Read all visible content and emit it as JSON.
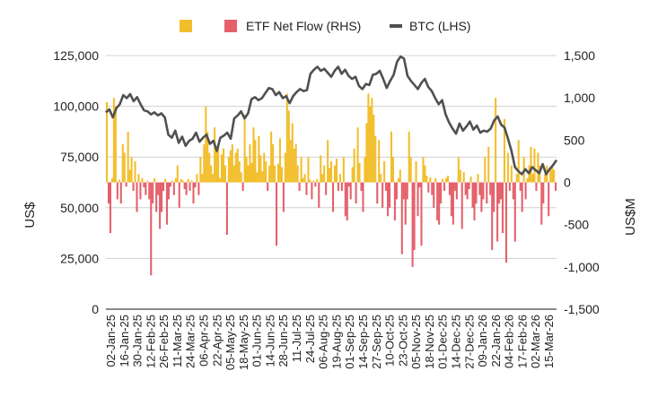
{
  "chart_data": {
    "type": "bar+line",
    "title": "",
    "legend": {
      "placement": "top-center",
      "entries": [
        {
          "label": "",
          "color": "#F2BE2C",
          "kind": "square"
        },
        {
          "label": "ETF Net Flow (RHS)",
          "color": "#E5606A",
          "kind": "square"
        },
        {
          "label": "BTC (LHS)",
          "color": "#505050",
          "kind": "line"
        }
      ]
    },
    "ylabel_left": "US$",
    "ylabel_right": "US$M",
    "ylim_left": [
      0,
      125000
    ],
    "ylim_right": [
      -1500,
      1500
    ],
    "yticks_left": [
      "125,000",
      "100,000",
      "75,000",
      "50,000",
      "25,000",
      "0"
    ],
    "yticks_left_values": [
      125000,
      100000,
      75000,
      50000,
      25000,
      0
    ],
    "yticks_right": [
      "1,500",
      "1,000",
      "500",
      "0",
      "-500",
      "-1,000",
      "-1,500"
    ],
    "yticks_right_values": [
      1500,
      1000,
      500,
      0,
      -500,
      -1000,
      -1500
    ],
    "grid": true,
    "x_tick_labels": [
      "02-Jan-25",
      "16-Jan-25",
      "30-Jan-25",
      "12-Feb-25",
      "26-Feb-25",
      "11-Mar-25",
      "24-Mar-25",
      "06-Apr-25",
      "22-Apr-25",
      "05-May-25",
      "18-May-25",
      "01-Jun-25",
      "14-Jun-25",
      "28-Jun-25",
      "11-Jul-25",
      "24-Jul-25",
      "06-Aug-25",
      "19-Aug-25",
      "01-Sep-25",
      "14-Sep-25",
      "27-Sep-25",
      "10-Oct-25",
      "23-Oct-25",
      "05-Nov-25",
      "18-Nov-25",
      "01-Dec-25",
      "14-Dec-25",
      "27-Dec-25",
      "09-Jan-26",
      "22-Jan-26",
      "04-Feb-26",
      "17-Feb-26",
      "02-Mar-26",
      "15-Mar-26"
    ],
    "colors": {
      "inflow": "#F2BE2C",
      "outflow": "#E5606A",
      "btc": "#505050",
      "grid": "#d0d0d0",
      "axis": "#444444"
    },
    "series": [
      {
        "name": "BTC (LHS)",
        "axis": "left",
        "values": [
          97000,
          98500,
          94500,
          99000,
          101000,
          105500,
          104000,
          106000,
          102500,
          104500,
          101000,
          98000,
          97500,
          96000,
          97000,
          95500,
          96500,
          94500,
          86000,
          84500,
          88000,
          82000,
          85000,
          80500,
          83000,
          84000,
          87000,
          82500,
          84500,
          86000,
          81500,
          83000,
          78000,
          84500,
          85500,
          87000,
          84000,
          94000,
          95500,
          97500,
          94000,
          96500,
          103500,
          104500,
          103000,
          104000,
          106500,
          109000,
          108500,
          105500,
          107000,
          104000,
          105000,
          101500,
          105000,
          107000,
          108500,
          107500,
          108000,
          116000,
          118000,
          119500,
          117500,
          118500,
          116500,
          114500,
          117500,
          119500,
          116000,
          118000,
          115000,
          113500,
          114500,
          110000,
          108500,
          111000,
          110500,
          115500,
          116000,
          117500,
          113500,
          109000,
          112500,
          115500,
          122000,
          124500,
          123500,
          115000,
          112500,
          110500,
          108500,
          111500,
          113500,
          109500,
          107500,
          104000,
          101000,
          103000,
          96000,
          92000,
          89000,
          86500,
          91500,
          88000,
          90000,
          92500,
          88500,
          90500,
          87000,
          88000,
          87500,
          89000,
          93000,
          95000,
          91000,
          89500,
          84000,
          78000,
          70000,
          68000,
          66500,
          69000,
          67000,
          70000,
          68500,
          67000,
          71500,
          66500,
          69000,
          71000,
          73500
        ],
        "x_range": [
          0,
          1
        ]
      },
      {
        "name": "ETF Net Flow (RHS)",
        "axis": "right",
        "values": [
          950,
          -250,
          -600,
          50,
          1000,
          900,
          -200,
          30,
          -250,
          450,
          350,
          -50,
          600,
          150,
          300,
          -100,
          250,
          -350,
          100,
          -200,
          50,
          -60,
          -150,
          20,
          -200,
          -1100,
          -250,
          50,
          -350,
          -150,
          -550,
          -350,
          -100,
          40,
          -500,
          -200,
          -50,
          20,
          -150,
          50,
          200,
          -300,
          40,
          20,
          -80,
          -150,
          40,
          -100,
          20,
          -250,
          -60,
          100,
          -150,
          300,
          100,
          450,
          900,
          600,
          350,
          200,
          100,
          650,
          380,
          450,
          50,
          330,
          400,
          200,
          -620,
          300,
          380,
          450,
          200,
          350,
          400,
          250,
          120,
          -100,
          800,
          300,
          200,
          450,
          230,
          650,
          500,
          120,
          550,
          320,
          130,
          350,
          250,
          -100,
          200,
          600,
          450,
          200,
          -750,
          220,
          520,
          180,
          -350,
          350,
          1050,
          850,
          500,
          700,
          400,
          450,
          200,
          -100,
          300,
          50,
          100,
          -150,
          300,
          30,
          -200,
          20,
          -50,
          40,
          -300,
          320,
          100,
          200,
          -150,
          500,
          170,
          250,
          -350,
          200,
          280,
          -100,
          100,
          -100,
          300,
          -400,
          -450,
          -50,
          -200,
          180,
          400,
          -250,
          650,
          230,
          -100,
          -350,
          300,
          700,
          1050,
          900,
          1000,
          800,
          550,
          -250,
          500,
          100,
          -300,
          250,
          -100,
          -400,
          -300,
          600,
          300,
          -450,
          -200,
          50,
          150,
          -850,
          -200,
          -500,
          -200,
          600,
          300,
          -1000,
          -800,
          250,
          -400,
          -60,
          -750,
          300,
          200,
          80,
          -120,
          60,
          -150,
          -300,
          50,
          -450,
          -500,
          -250,
          40,
          -100,
          50,
          80,
          -150,
          -400,
          -500,
          -100,
          -200,
          300,
          150,
          -550,
          120,
          -150,
          -200,
          -80,
          70,
          -300,
          -450,
          -250,
          100,
          -150,
          -350,
          -200,
          300,
          -250,
          420,
          -150,
          -800,
          -350,
          1000,
          -700,
          -250,
          -200,
          -600,
          750,
          -950,
          350,
          -100,
          200,
          -200,
          -700,
          100,
          500,
          -100,
          -350,
          300,
          -200,
          50,
          200,
          420,
          100,
          400,
          -100,
          350,
          200,
          -500,
          -250,
          100,
          200,
          -400,
          150,
          180,
          150,
          -100
        ]
      }
    ]
  }
}
